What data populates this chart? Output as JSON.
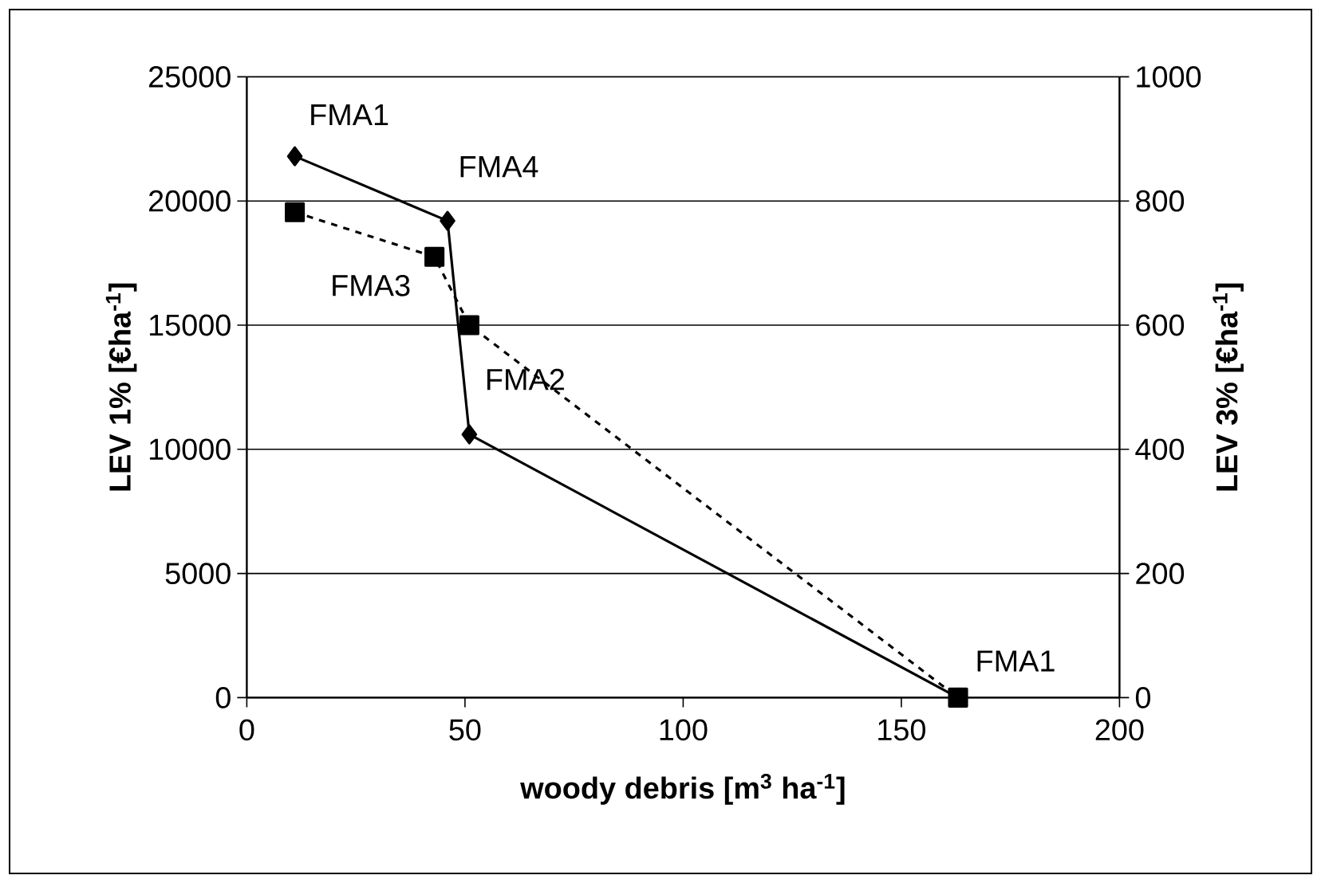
{
  "chart_data": {
    "type": "line",
    "xlabel": "woody debris [m$^{3}$ ha$^{-1}$]",
    "ylabel": "LEV 1% [€ha$^{-1}$]",
    "y2label": "LEV 3% [€ha$^{-1}$]",
    "series": [
      {
        "x": [
          11,
          46,
          51,
          163
        ],
        "values": [
          21800,
          19200,
          10600,
          0
        ],
        "color": "#000000",
        "marker": "diamond",
        "line_style": "solid"
      },
      {
        "x": [
          11,
          43,
          51,
          163
        ],
        "values": [
          782,
          710,
          600,
          0
        ],
        "color": "#000000",
        "marker": "square",
        "line_style": "dashed",
        "axis": "y2"
      }
    ],
    "xlim": [
      0,
      200
    ],
    "xticks": [
      0,
      50,
      100,
      150,
      200
    ],
    "ylim": [
      0,
      25000
    ],
    "yticks": [
      0,
      5000,
      10000,
      15000,
      20000,
      25000
    ],
    "y2lim": [
      0,
      1000
    ],
    "y2ticks": [
      0,
      200,
      400,
      600,
      800,
      1000
    ],
    "grid": "y",
    "annotations": [
      {
        "text": "FMA1",
        "x": 11,
        "y": 21800
      },
      {
        "text": "FMA4",
        "x": 46,
        "y": 19200
      },
      {
        "text": "FMA3",
        "x": 43,
        "y": 17750
      },
      {
        "text": "FMA2",
        "x": 51,
        "y": 15000
      },
      {
        "text": "FMA1",
        "x": 163,
        "y": 0
      }
    ]
  }
}
